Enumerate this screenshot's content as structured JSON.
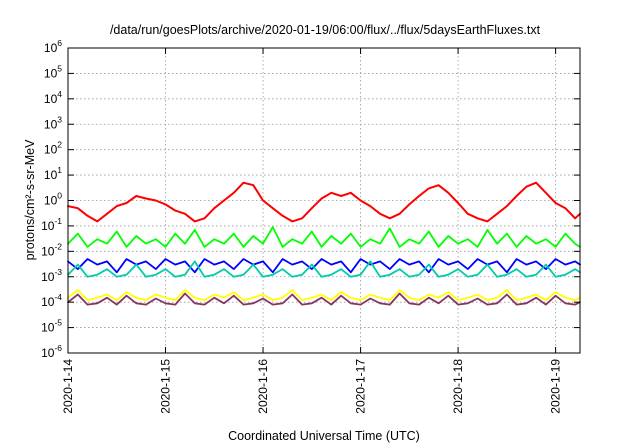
{
  "chart_data": {
    "type": "line",
    "title": "/data/run/goesPlots/archive/2020-01-19/06:00/flux/../flux/5daysEarthFluxes.txt",
    "xlabel": "Coordinated Universal Time (UTC)",
    "ylabel": "protons/cm²-s-sr-MeV",
    "yscale": "log",
    "ylim": [
      1e-06,
      1000000.0
    ],
    "xlim": [
      "2020-01-14 00:00",
      "2020-01-19 06:00"
    ],
    "y_tick_exponents": [
      -6,
      -5,
      -4,
      -3,
      -2,
      -1,
      0,
      1,
      2,
      3,
      4,
      5,
      6
    ],
    "y_tick_base": "10",
    "x_ticks": [
      "2020-1-14",
      "2020-1-15",
      "2020-1-16",
      "2020-1-17",
      "2020-1-18",
      "2020-1-19"
    ],
    "grid": true,
    "series": [
      {
        "color": "#ff0000",
        "x_days": [
          0,
          0.1,
          0.2,
          0.3,
          0.4,
          0.5,
          0.6,
          0.7,
          0.8,
          0.9,
          1.0,
          1.1,
          1.2,
          1.3,
          1.4,
          1.5,
          1.6,
          1.7,
          1.8,
          1.9,
          2.0,
          2.1,
          2.2,
          2.3,
          2.4,
          2.5,
          2.6,
          2.7,
          2.8,
          2.9,
          3.0,
          3.1,
          3.2,
          3.3,
          3.4,
          3.5,
          3.6,
          3.7,
          3.8,
          3.9,
          4.0,
          4.1,
          4.2,
          4.3,
          4.4,
          4.5,
          4.6,
          4.7,
          4.8,
          4.9,
          5.0,
          5.1,
          5.2,
          5.25
        ],
        "values": [
          0.6,
          0.5,
          0.25,
          0.15,
          0.3,
          0.6,
          0.8,
          1.5,
          1.2,
          1.0,
          0.7,
          0.4,
          0.3,
          0.15,
          0.2,
          0.5,
          1.0,
          2.0,
          5.0,
          4.0,
          1.0,
          0.5,
          0.25,
          0.15,
          0.2,
          0.5,
          1.2,
          2.0,
          1.5,
          2.0,
          1.0,
          0.6,
          0.3,
          0.2,
          0.3,
          0.7,
          1.5,
          3.0,
          4.0,
          2.0,
          0.8,
          0.3,
          0.2,
          0.15,
          0.3,
          0.6,
          1.5,
          3.5,
          5.0,
          2.0,
          0.8,
          0.5,
          0.2,
          0.3
        ]
      },
      {
        "color": "#00ff00",
        "x_days": [
          0,
          0.1,
          0.2,
          0.3,
          0.4,
          0.5,
          0.6,
          0.7,
          0.8,
          0.9,
          1.0,
          1.1,
          1.2,
          1.3,
          1.4,
          1.5,
          1.6,
          1.7,
          1.8,
          1.9,
          2.0,
          2.1,
          2.2,
          2.3,
          2.4,
          2.5,
          2.6,
          2.7,
          2.8,
          2.9,
          3.0,
          3.1,
          3.2,
          3.3,
          3.4,
          3.5,
          3.6,
          3.7,
          3.8,
          3.9,
          4.0,
          4.1,
          4.2,
          4.3,
          4.4,
          4.5,
          4.6,
          4.7,
          4.8,
          4.9,
          5.0,
          5.1,
          5.2,
          5.25
        ],
        "values": [
          0.02,
          0.05,
          0.015,
          0.03,
          0.02,
          0.06,
          0.015,
          0.04,
          0.02,
          0.03,
          0.015,
          0.05,
          0.02,
          0.07,
          0.015,
          0.03,
          0.02,
          0.05,
          0.015,
          0.04,
          0.02,
          0.09,
          0.015,
          0.03,
          0.02,
          0.06,
          0.015,
          0.04,
          0.02,
          0.05,
          0.015,
          0.03,
          0.02,
          0.08,
          0.015,
          0.03,
          0.02,
          0.06,
          0.015,
          0.04,
          0.02,
          0.03,
          0.015,
          0.07,
          0.02,
          0.05,
          0.015,
          0.04,
          0.02,
          0.03,
          0.015,
          0.05,
          0.02,
          0.015
        ]
      },
      {
        "color": "#0000ff",
        "x_days": [
          0,
          0.1,
          0.2,
          0.3,
          0.4,
          0.5,
          0.6,
          0.7,
          0.8,
          0.9,
          1.0,
          1.1,
          1.2,
          1.3,
          1.4,
          1.5,
          1.6,
          1.7,
          1.8,
          1.9,
          2.0,
          2.1,
          2.2,
          2.3,
          2.4,
          2.5,
          2.6,
          2.7,
          2.8,
          2.9,
          3.0,
          3.1,
          3.2,
          3.3,
          3.4,
          3.5,
          3.6,
          3.7,
          3.8,
          3.9,
          4.0,
          4.1,
          4.2,
          4.3,
          4.4,
          4.5,
          4.6,
          4.7,
          4.8,
          4.9,
          5.0,
          5.1,
          5.2,
          5.25
        ],
        "values": [
          0.004,
          0.002,
          0.005,
          0.003,
          0.004,
          0.0015,
          0.005,
          0.003,
          0.004,
          0.002,
          0.005,
          0.003,
          0.004,
          0.0015,
          0.005,
          0.003,
          0.004,
          0.002,
          0.005,
          0.003,
          0.004,
          0.0015,
          0.005,
          0.003,
          0.004,
          0.002,
          0.005,
          0.003,
          0.004,
          0.0015,
          0.005,
          0.003,
          0.004,
          0.002,
          0.005,
          0.003,
          0.004,
          0.0015,
          0.005,
          0.003,
          0.004,
          0.002,
          0.005,
          0.003,
          0.004,
          0.0015,
          0.005,
          0.003,
          0.004,
          0.002,
          0.005,
          0.003,
          0.004,
          0.003
        ]
      },
      {
        "color": "#00ccaa",
        "x_days": [
          0,
          0.1,
          0.2,
          0.3,
          0.4,
          0.5,
          0.6,
          0.7,
          0.8,
          0.9,
          1.0,
          1.1,
          1.2,
          1.3,
          1.4,
          1.5,
          1.6,
          1.7,
          1.8,
          1.9,
          2.0,
          2.1,
          2.2,
          2.3,
          2.4,
          2.5,
          2.6,
          2.7,
          2.8,
          2.9,
          3.0,
          3.1,
          3.2,
          3.3,
          3.4,
          3.5,
          3.6,
          3.7,
          3.8,
          3.9,
          4.0,
          4.1,
          4.2,
          4.3,
          4.4,
          4.5,
          4.6,
          4.7,
          4.8,
          4.9,
          5.0,
          5.1,
          5.2,
          5.25
        ],
        "values": [
          0.0012,
          0.003,
          0.001,
          0.0012,
          0.002,
          0.001,
          0.0012,
          0.003,
          0.001,
          0.0012,
          0.002,
          0.001,
          0.0012,
          0.004,
          0.001,
          0.0012,
          0.002,
          0.001,
          0.0012,
          0.003,
          0.001,
          0.0012,
          0.002,
          0.001,
          0.0012,
          0.003,
          0.001,
          0.0012,
          0.002,
          0.001,
          0.0012,
          0.004,
          0.001,
          0.0012,
          0.002,
          0.001,
          0.0012,
          0.003,
          0.001,
          0.0012,
          0.002,
          0.001,
          0.0012,
          0.003,
          0.001,
          0.0012,
          0.002,
          0.001,
          0.0012,
          0.003,
          0.001,
          0.0012,
          0.002,
          0.0015
        ]
      },
      {
        "color": "#ffff00",
        "x_days": [
          0,
          0.1,
          0.2,
          0.3,
          0.4,
          0.5,
          0.6,
          0.7,
          0.8,
          0.9,
          1.0,
          1.1,
          1.2,
          1.3,
          1.4,
          1.5,
          1.6,
          1.7,
          1.8,
          1.9,
          2.0,
          2.1,
          2.2,
          2.3,
          2.4,
          2.5,
          2.6,
          2.7,
          2.8,
          2.9,
          3.0,
          3.1,
          3.2,
          3.3,
          3.4,
          3.5,
          3.6,
          3.7,
          3.8,
          3.9,
          4.0,
          4.1,
          4.2,
          4.3,
          4.4,
          4.5,
          4.6,
          4.7,
          4.8,
          4.9,
          5.0,
          5.1,
          5.2,
          5.25
        ],
        "values": [
          0.00015,
          0.0003,
          0.00012,
          0.00015,
          0.0002,
          0.00012,
          0.00025,
          0.00015,
          0.00012,
          0.0002,
          0.00015,
          0.00012,
          0.0003,
          0.00015,
          0.00012,
          0.0002,
          0.00015,
          0.00025,
          0.00012,
          0.00015,
          0.0002,
          0.00012,
          0.00015,
          0.0003,
          0.00012,
          0.00015,
          0.0002,
          0.00012,
          0.00025,
          0.00015,
          0.00012,
          0.0002,
          0.00015,
          0.00012,
          0.0003,
          0.00015,
          0.00012,
          0.0002,
          0.00015,
          0.00025,
          0.00012,
          0.00015,
          0.0002,
          0.00012,
          0.00015,
          0.0003,
          0.00012,
          0.00015,
          0.0002,
          0.00012,
          0.00025,
          0.00015,
          0.00012,
          0.00015
        ]
      },
      {
        "color": "#883366",
        "x_days": [
          0,
          0.1,
          0.2,
          0.3,
          0.4,
          0.5,
          0.6,
          0.7,
          0.8,
          0.9,
          1.0,
          1.1,
          1.2,
          1.3,
          1.4,
          1.5,
          1.6,
          1.7,
          1.8,
          1.9,
          2.0,
          2.1,
          2.2,
          2.3,
          2.4,
          2.5,
          2.6,
          2.7,
          2.8,
          2.9,
          3.0,
          3.1,
          3.2,
          3.3,
          3.4,
          3.5,
          3.6,
          3.7,
          3.8,
          3.9,
          4.0,
          4.1,
          4.2,
          4.3,
          4.4,
          4.5,
          4.6,
          4.7,
          4.8,
          4.9,
          5.0,
          5.1,
          5.2,
          5.25
        ],
        "values": [
          0.0001,
          0.0002,
          8e-05,
          9e-05,
          0.00015,
          8e-05,
          0.00018,
          9e-05,
          8e-05,
          0.00014,
          9e-05,
          8e-05,
          0.00022,
          9e-05,
          8e-05,
          0.00015,
          9e-05,
          0.00018,
          8e-05,
          9e-05,
          0.00014,
          8e-05,
          9e-05,
          0.0002,
          8e-05,
          9e-05,
          0.00015,
          8e-05,
          0.00018,
          9e-05,
          8e-05,
          0.00014,
          9e-05,
          8e-05,
          0.00022,
          9e-05,
          8e-05,
          0.00015,
          9e-05,
          0.00018,
          8e-05,
          9e-05,
          0.00014,
          8e-05,
          9e-05,
          0.0002,
          8e-05,
          9e-05,
          0.00015,
          8e-05,
          0.00018,
          9e-05,
          8e-05,
          0.0001
        ]
      }
    ]
  }
}
